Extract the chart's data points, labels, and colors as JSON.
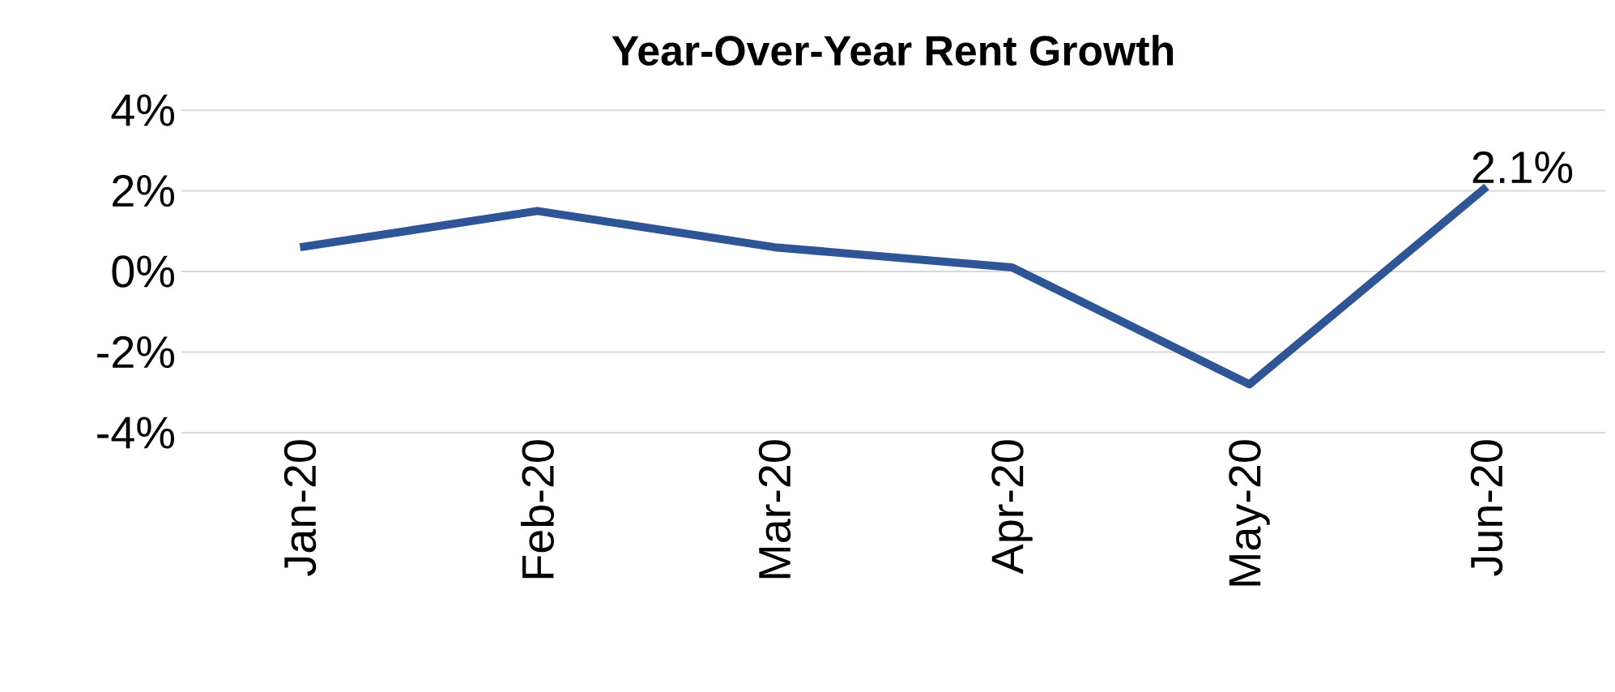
{
  "chart_data": {
    "type": "line",
    "title": "Year-Over-Year Rent Growth",
    "categories": [
      "Jan-20",
      "Feb-20",
      "Mar-20",
      "Apr-20",
      "May-20",
      "Jun-20"
    ],
    "series": [
      {
        "color": "#2f5597",
        "values": [
          0.6,
          1.5,
          0.6,
          0.1,
          -2.8,
          2.1
        ],
        "value_labels": [
          null,
          null,
          null,
          null,
          null,
          "2.1%"
        ]
      }
    ],
    "ylim": [
      -4,
      4
    ],
    "yticks": [
      {
        "value": -4,
        "label": "-4%"
      },
      {
        "value": -2,
        "label": "-2%"
      },
      {
        "value": 0,
        "label": "0%"
      },
      {
        "value": 2,
        "label": "2%"
      },
      {
        "value": 4,
        "label": "4%"
      }
    ],
    "grid": "y",
    "marker": "none",
    "line_style": "solid"
  }
}
